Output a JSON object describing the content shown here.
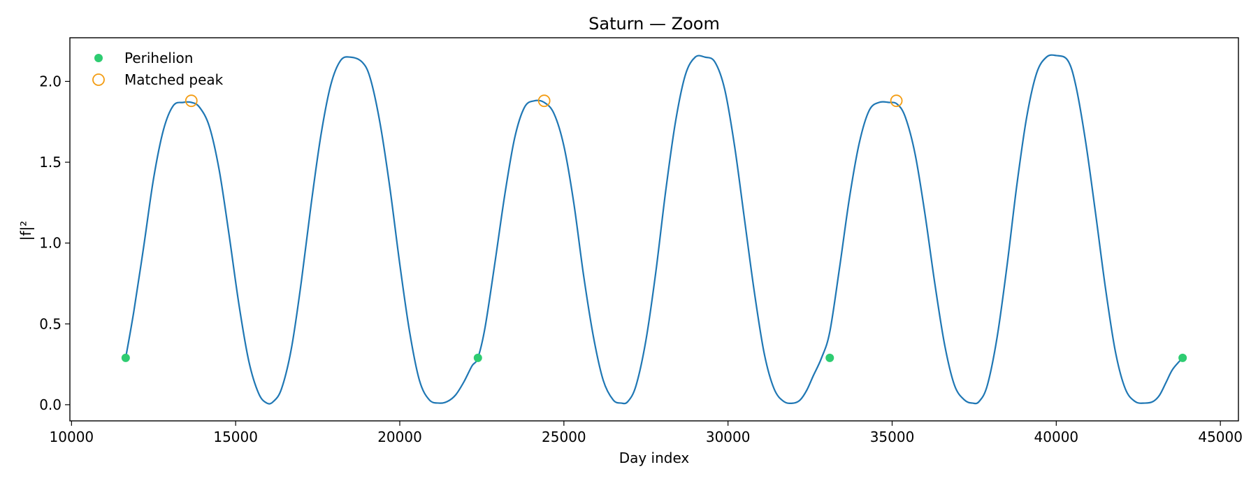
{
  "chart_data": {
    "type": "line",
    "title": "Saturn — Zoom",
    "xlabel": "Day index",
    "ylabel": "|f|²",
    "xlim": [
      9950,
      45550
    ],
    "ylim": [
      -0.1,
      2.27
    ],
    "x_ticks": [
      10000,
      15000,
      20000,
      25000,
      30000,
      35000,
      40000,
      45000
    ],
    "y_ticks": [
      0.0,
      0.5,
      1.0,
      1.5,
      2.0
    ],
    "x_tick_labels": [
      "10000",
      "15000",
      "20000",
      "25000",
      "30000",
      "35000",
      "40000",
      "45000"
    ],
    "y_tick_labels": [
      "0.0",
      "0.5",
      "1.0",
      "1.5",
      "2.0"
    ],
    "grid": false,
    "legend_position": "top-left",
    "curve": {
      "color": "#1f77b4",
      "x": [
        11650,
        11900,
        12200,
        12500,
        12800,
        13100,
        13400,
        13650,
        13900,
        14200,
        14500,
        14800,
        15100,
        15400,
        15700,
        15950,
        16150,
        16400,
        16700,
        17000,
        17300,
        17600,
        17900,
        18200,
        18500,
        18850,
        19100,
        19400,
        19700,
        20000,
        20300,
        20600,
        20900,
        21200,
        21450,
        21700,
        21950,
        22200,
        22380,
        22600,
        22900,
        23200,
        23500,
        23800,
        24100,
        24400,
        24700,
        25000,
        25300,
        25600,
        25900,
        26200,
        26500,
        26750,
        26950,
        27200,
        27500,
        27800,
        28100,
        28400,
        28700,
        29000,
        29300,
        29600,
        29900,
        30200,
        30500,
        30800,
        31100,
        31400,
        31700,
        32000,
        32200,
        32400,
        32600,
        32850,
        33100,
        33400,
        33700,
        34000,
        34300,
        34600,
        34900,
        35150,
        35400,
        35700,
        36000,
        36300,
        36600,
        36900,
        37200,
        37450,
        37650,
        37900,
        38200,
        38500,
        38800,
        39100,
        39400,
        39700,
        40000,
        40350,
        40600,
        40900,
        41200,
        41500,
        41800,
        42100,
        42400,
        42700,
        42950,
        43150,
        43350,
        43550,
        43850
      ],
      "y": [
        0.29,
        0.58,
        0.98,
        1.4,
        1.7,
        1.85,
        1.87,
        1.87,
        1.84,
        1.72,
        1.45,
        1.05,
        0.62,
        0.27,
        0.07,
        0.01,
        0.02,
        0.1,
        0.35,
        0.76,
        1.24,
        1.67,
        1.98,
        2.13,
        2.15,
        2.12,
        2.02,
        1.74,
        1.34,
        0.87,
        0.45,
        0.15,
        0.03,
        0.01,
        0.02,
        0.06,
        0.14,
        0.24,
        0.29,
        0.48,
        0.88,
        1.3,
        1.65,
        1.84,
        1.88,
        1.87,
        1.8,
        1.6,
        1.25,
        0.8,
        0.42,
        0.15,
        0.03,
        0.01,
        0.02,
        0.12,
        0.4,
        0.82,
        1.32,
        1.75,
        2.04,
        2.15,
        2.15,
        2.12,
        1.95,
        1.6,
        1.15,
        0.7,
        0.32,
        0.1,
        0.02,
        0.01,
        0.03,
        0.09,
        0.18,
        0.29,
        0.45,
        0.85,
        1.28,
        1.62,
        1.82,
        1.87,
        1.87,
        1.86,
        1.78,
        1.55,
        1.18,
        0.75,
        0.37,
        0.12,
        0.03,
        0.01,
        0.02,
        0.12,
        0.42,
        0.86,
        1.36,
        1.78,
        2.05,
        2.15,
        2.16,
        2.13,
        1.97,
        1.62,
        1.18,
        0.72,
        0.33,
        0.1,
        0.02,
        0.01,
        0.02,
        0.06,
        0.14,
        0.22,
        0.29
      ]
    },
    "series": [
      {
        "name": "Perihelion",
        "type": "scatter",
        "marker": "filled-circle",
        "color": "#2ecc71",
        "x": [
          11650,
          22380,
          33100,
          43850
        ],
        "y": [
          0.29,
          0.29,
          0.29,
          0.29
        ]
      },
      {
        "name": "Matched peak",
        "type": "scatter",
        "marker": "hollow-circle",
        "color": "#f39c12",
        "x": [
          13650,
          24400,
          35130
        ],
        "y": [
          1.88,
          1.88,
          1.88
        ]
      }
    ]
  }
}
